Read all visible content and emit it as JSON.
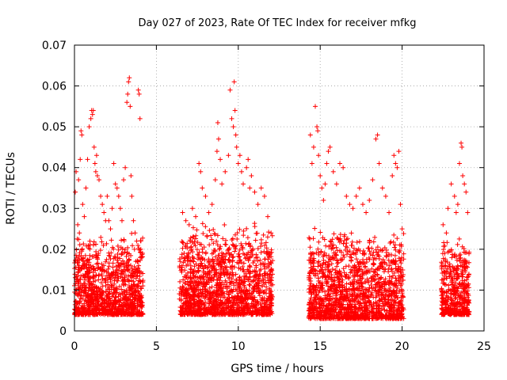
{
  "chart_data": {
    "type": "scatter",
    "title": "Day 027 of 2023, Rate Of TEC Index for receiver mfkg",
    "xlabel": "GPS time / hours",
    "ylabel": "ROTI / TECUs",
    "xlim": [
      0,
      25
    ],
    "ylim": [
      0,
      0.07
    ],
    "xticks": [
      "0",
      "5",
      "10",
      "15",
      "20",
      "25"
    ],
    "yticks": [
      "0",
      "0.01",
      "0.02",
      "0.03",
      "0.04",
      "0.05",
      "0.06",
      "0.07"
    ],
    "grid": true,
    "marker": "+",
    "color": "#ff0000",
    "series": [
      {
        "points": [
          [
            0.05,
            0.034
          ],
          [
            0.1,
            0.039
          ],
          [
            0.2,
            0.026
          ],
          [
            0.25,
            0.037
          ],
          [
            0.3,
            0.024
          ],
          [
            0.35,
            0.042
          ],
          [
            0.4,
            0.049
          ],
          [
            0.45,
            0.048
          ],
          [
            0.5,
            0.031
          ],
          [
            0.6,
            0.028
          ],
          [
            0.7,
            0.035
          ],
          [
            0.8,
            0.042
          ],
          [
            0.9,
            0.05
          ],
          [
            1.0,
            0.052
          ],
          [
            1.05,
            0.054
          ],
          [
            1.1,
            0.053
          ],
          [
            1.15,
            0.054
          ],
          [
            1.2,
            0.045
          ],
          [
            1.25,
            0.041
          ],
          [
            1.3,
            0.039
          ],
          [
            1.35,
            0.043
          ],
          [
            1.4,
            0.038
          ],
          [
            1.5,
            0.037
          ],
          [
            1.6,
            0.033
          ],
          [
            1.7,
            0.031
          ],
          [
            1.8,
            0.029
          ],
          [
            1.9,
            0.027
          ],
          [
            2.0,
            0.033
          ],
          [
            2.1,
            0.027
          ],
          [
            2.2,
            0.025
          ],
          [
            2.3,
            0.03
          ],
          [
            2.4,
            0.041
          ],
          [
            2.5,
            0.036
          ],
          [
            2.6,
            0.035
          ],
          [
            2.7,
            0.033
          ],
          [
            2.8,
            0.03
          ],
          [
            2.9,
            0.027
          ],
          [
            3.0,
            0.037
          ],
          [
            3.1,
            0.04
          ],
          [
            3.2,
            0.056
          ],
          [
            3.25,
            0.058
          ],
          [
            3.3,
            0.061
          ],
          [
            3.35,
            0.062
          ],
          [
            3.4,
            0.055
          ],
          [
            3.45,
            0.038
          ],
          [
            3.5,
            0.033
          ],
          [
            3.6,
            0.027
          ],
          [
            3.7,
            0.024
          ],
          [
            3.8,
            0.022
          ],
          [
            3.9,
            0.059
          ],
          [
            3.95,
            0.058
          ],
          [
            4.0,
            0.052
          ],
          [
            4.05,
            0.02
          ],
          [
            4.1,
            0.018
          ],
          [
            6.6,
            0.029
          ],
          [
            6.8,
            0.027
          ],
          [
            7.0,
            0.026
          ],
          [
            7.2,
            0.03
          ],
          [
            7.4,
            0.028
          ],
          [
            7.6,
            0.041
          ],
          [
            7.7,
            0.039
          ],
          [
            7.8,
            0.035
          ],
          [
            8.0,
            0.033
          ],
          [
            8.2,
            0.029
          ],
          [
            8.4,
            0.031
          ],
          [
            8.6,
            0.037
          ],
          [
            8.7,
            0.044
          ],
          [
            8.75,
            0.051
          ],
          [
            8.8,
            0.047
          ],
          [
            8.9,
            0.042
          ],
          [
            9.0,
            0.036
          ],
          [
            9.2,
            0.039
          ],
          [
            9.4,
            0.043
          ],
          [
            9.5,
            0.059
          ],
          [
            9.6,
            0.052
          ],
          [
            9.7,
            0.05
          ],
          [
            9.75,
            0.061
          ],
          [
            9.8,
            0.054
          ],
          [
            9.85,
            0.048
          ],
          [
            9.9,
            0.045
          ],
          [
            10.0,
            0.041
          ],
          [
            10.1,
            0.043
          ],
          [
            10.2,
            0.039
          ],
          [
            10.3,
            0.036
          ],
          [
            10.5,
            0.04
          ],
          [
            10.6,
            0.042
          ],
          [
            10.7,
            0.035
          ],
          [
            10.8,
            0.038
          ],
          [
            11.0,
            0.034
          ],
          [
            11.2,
            0.031
          ],
          [
            11.4,
            0.035
          ],
          [
            11.6,
            0.033
          ],
          [
            11.8,
            0.028
          ],
          [
            12.0,
            0.024
          ],
          [
            14.4,
            0.048
          ],
          [
            14.5,
            0.041
          ],
          [
            14.6,
            0.045
          ],
          [
            14.7,
            0.055
          ],
          [
            14.8,
            0.05
          ],
          [
            14.85,
            0.049
          ],
          [
            14.9,
            0.043
          ],
          [
            15.0,
            0.038
          ],
          [
            15.1,
            0.035
          ],
          [
            15.2,
            0.032
          ],
          [
            15.3,
            0.036
          ],
          [
            15.4,
            0.041
          ],
          [
            15.5,
            0.044
          ],
          [
            15.6,
            0.045
          ],
          [
            15.8,
            0.039
          ],
          [
            16.0,
            0.036
          ],
          [
            16.2,
            0.041
          ],
          [
            16.4,
            0.04
          ],
          [
            16.6,
            0.033
          ],
          [
            16.8,
            0.031
          ],
          [
            17.0,
            0.03
          ],
          [
            17.2,
            0.033
          ],
          [
            17.4,
            0.035
          ],
          [
            17.6,
            0.031
          ],
          [
            17.8,
            0.029
          ],
          [
            18.0,
            0.032
          ],
          [
            18.2,
            0.037
          ],
          [
            18.4,
            0.047
          ],
          [
            18.5,
            0.048
          ],
          [
            18.6,
            0.041
          ],
          [
            18.8,
            0.035
          ],
          [
            19.0,
            0.033
          ],
          [
            19.2,
            0.029
          ],
          [
            19.4,
            0.038
          ],
          [
            19.5,
            0.043
          ],
          [
            19.6,
            0.041
          ],
          [
            19.7,
            0.04
          ],
          [
            19.8,
            0.044
          ],
          [
            19.9,
            0.031
          ],
          [
            20.0,
            0.025
          ],
          [
            22.5,
            0.026
          ],
          [
            22.7,
            0.024
          ],
          [
            22.8,
            0.03
          ],
          [
            23.0,
            0.036
          ],
          [
            23.2,
            0.033
          ],
          [
            23.3,
            0.029
          ],
          [
            23.4,
            0.031
          ],
          [
            23.5,
            0.041
          ],
          [
            23.6,
            0.046
          ],
          [
            23.65,
            0.045
          ],
          [
            23.7,
            0.038
          ],
          [
            23.8,
            0.036
          ],
          [
            23.9,
            0.034
          ],
          [
            24.0,
            0.029
          ]
        ],
        "clusters": [
          {
            "x": [
              0.0,
              4.2
            ],
            "y_range": [
              0.004,
              0.024
            ],
            "density": 1100
          },
          {
            "x": [
              6.4,
              12.1
            ],
            "y_range": [
              0.004,
              0.027
            ],
            "density": 1500
          },
          {
            "x": [
              14.3,
              20.1
            ],
            "y_range": [
              0.003,
              0.026
            ],
            "density": 1500
          },
          {
            "x": [
              22.4,
              24.1
            ],
            "y_range": [
              0.004,
              0.023
            ],
            "density": 460
          }
        ]
      }
    ]
  }
}
